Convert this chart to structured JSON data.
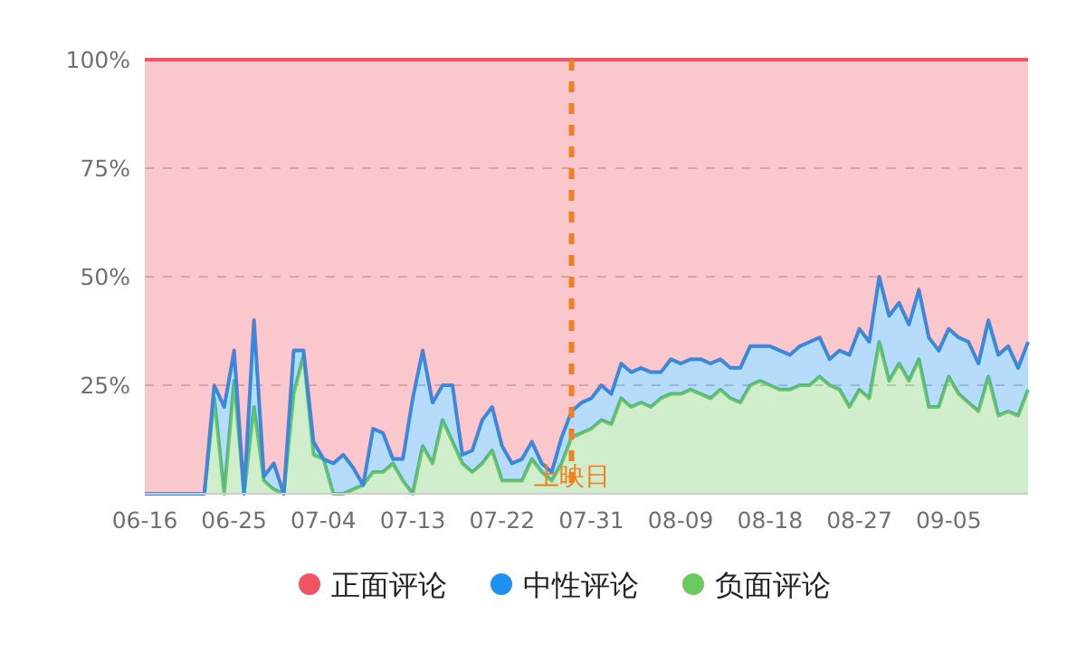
{
  "chart_data": {
    "type": "area",
    "stacked": true,
    "x": [
      "--06-16",
      "--06-17",
      "--06-18",
      "--06-19",
      "--06-20",
      "--06-21",
      "--06-22",
      "--06-23",
      "--06-24",
      "--06-25",
      "--06-26",
      "--06-27",
      "--06-28",
      "--06-29",
      "--06-30",
      "--07-01",
      "--07-02",
      "--07-03",
      "--07-04",
      "--07-05",
      "--07-06",
      "--07-07",
      "--07-08",
      "--07-09",
      "--07-10",
      "--07-11",
      "--07-12",
      "--07-13",
      "--07-14",
      "--07-15",
      "--07-16",
      "--07-17",
      "--07-18",
      "--07-19",
      "--07-20",
      "--07-21",
      "--07-22",
      "--07-23",
      "--07-24",
      "--07-25",
      "--07-26",
      "--07-27",
      "--07-28",
      "--07-29",
      "--07-30",
      "--07-31",
      "--08-01",
      "--08-02",
      "--08-03",
      "--08-04",
      "--08-05",
      "--08-06",
      "--08-07",
      "--08-08",
      "--08-09",
      "--08-10",
      "--08-11",
      "--08-12",
      "--08-13",
      "--08-14",
      "--08-15",
      "--08-16",
      "--08-17",
      "--08-18",
      "--08-19",
      "--08-20",
      "--08-21",
      "--08-22",
      "--08-23",
      "--08-24",
      "--08-25",
      "--08-26",
      "--08-27",
      "--08-28",
      "--08-29",
      "--08-30",
      "--08-31",
      "--09-01",
      "--09-02",
      "--09-03",
      "--09-04",
      "--09-05",
      "--09-06",
      "--09-07",
      "--09-08",
      "--09-09",
      "--09-10",
      "--09-11",
      "--09-12",
      "--09-13"
    ],
    "xlim": [
      "--06-16",
      "--09-13"
    ],
    "xticks": [
      {
        "value": "--06-16",
        "label": "06-16"
      },
      {
        "value": "--06-25",
        "label": "06-25"
      },
      {
        "value": "--07-04",
        "label": "07-04"
      },
      {
        "value": "--07-13",
        "label": "07-13"
      },
      {
        "value": "--07-22",
        "label": "07-22"
      },
      {
        "value": "--07-31",
        "label": "07-31"
      },
      {
        "value": "--08-09",
        "label": "08-09"
      },
      {
        "value": "--08-18",
        "label": "08-18"
      },
      {
        "value": "--08-27",
        "label": "08-27"
      },
      {
        "value": "--09-05",
        "label": "09-05"
      }
    ],
    "ylim": [
      0,
      100
    ],
    "yticks": [
      {
        "value": 25,
        "label": "25%"
      },
      {
        "value": 50,
        "label": "50%"
      },
      {
        "value": 75,
        "label": "75%"
      },
      {
        "value": 100,
        "label": "100%"
      }
    ],
    "grid": "y",
    "legend": "bottom",
    "series": [
      {
        "name": "负面评论",
        "color": "#6cc860",
        "values": [
          0,
          0,
          0,
          0,
          0,
          0,
          0,
          22,
          0,
          26,
          0,
          20,
          3,
          1,
          0,
          23,
          32,
          9,
          8,
          0,
          0,
          1,
          2,
          5,
          5,
          7,
          3,
          0,
          11,
          7,
          17,
          12,
          7,
          5,
          7,
          10,
          3,
          3,
          3,
          8,
          5,
          3,
          7,
          13,
          14,
          15,
          17,
          16,
          22,
          20,
          21,
          20,
          22,
          23,
          23,
          24,
          23,
          22,
          24,
          22,
          21,
          25,
          26,
          25,
          24,
          24,
          25,
          25,
          27,
          25,
          24,
          20,
          24,
          22,
          35,
          26,
          30,
          26,
          31,
          20,
          20,
          27,
          23,
          21,
          19,
          27,
          18,
          19,
          18,
          24
        ]
      },
      {
        "name": "中性评论",
        "color": "#1e90f0",
        "values": [
          0,
          0,
          0,
          0,
          0,
          0,
          0,
          3,
          20,
          7,
          0,
          20,
          1,
          6,
          0,
          10,
          1,
          3,
          0,
          7,
          9,
          5,
          0,
          10,
          9,
          1,
          5,
          22,
          22,
          14,
          8,
          13,
          2,
          5,
          10,
          10,
          8,
          4,
          5,
          4,
          2,
          2,
          6,
          6,
          7,
          7,
          8,
          7,
          8,
          8,
          8,
          8,
          6,
          8,
          7,
          7,
          8,
          8,
          7,
          7,
          8,
          9,
          8,
          9,
          9,
          8,
          9,
          10,
          9,
          6,
          9,
          12,
          14,
          13,
          15,
          15,
          14,
          13,
          16,
          16,
          13,
          11,
          13,
          14,
          11,
          13,
          14,
          15,
          11,
          11
        ]
      },
      {
        "name": "正面评论",
        "color": "#ee5560",
        "values": [
          100,
          100,
          100,
          100,
          100,
          100,
          100,
          75,
          80,
          67,
          100,
          60,
          96,
          93,
          100,
          67,
          67,
          88,
          92,
          93,
          91,
          94,
          98,
          85,
          86,
          92,
          92,
          78,
          67,
          79,
          75,
          75,
          91,
          90,
          83,
          80,
          89,
          93,
          92,
          88,
          93,
          95,
          87,
          81,
          79,
          78,
          75,
          77,
          70,
          72,
          71,
          72,
          72,
          69,
          70,
          69,
          69,
          70,
          69,
          71,
          71,
          66,
          66,
          66,
          67,
          68,
          66,
          65,
          64,
          69,
          67,
          68,
          62,
          65,
          50,
          59,
          56,
          61,
          53,
          64,
          67,
          62,
          64,
          65,
          70,
          60,
          68,
          66,
          71,
          65
        ]
      }
    ],
    "ref_lines": [
      {
        "axis": "x",
        "value": "--07-29",
        "label": "上映日",
        "color": "#f08020",
        "line_style": "dashed"
      }
    ]
  }
}
